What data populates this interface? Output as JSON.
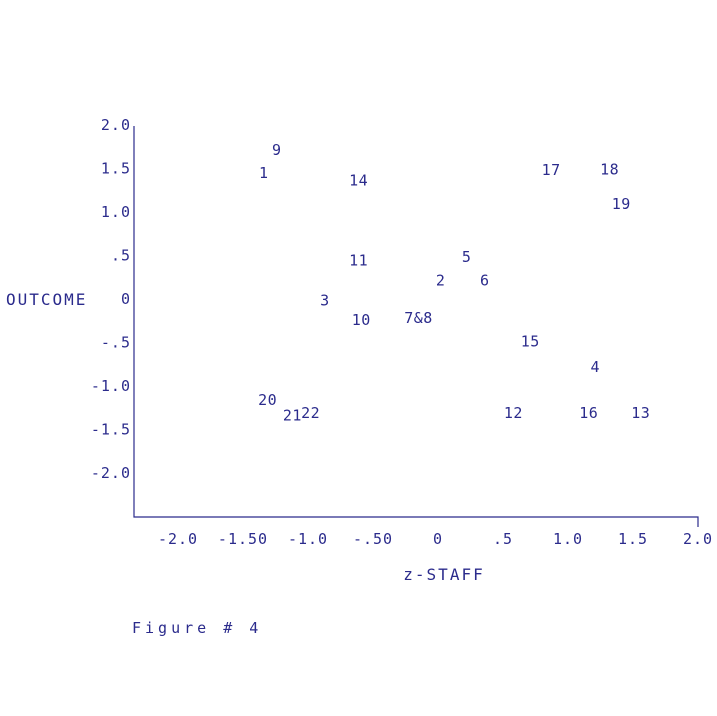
{
  "chart_data": {
    "type": "scatter",
    "title": "",
    "xlabel": "z-STAFF",
    "ylabel": "OUTCOME",
    "caption": "Figure # 4",
    "xlim": [
      -2.0,
      2.0
    ],
    "ylim": [
      -2.5,
      2.0
    ],
    "grid": false,
    "x_ticks": [
      {
        "label": "-2.0",
        "value": -2.0
      },
      {
        "label": "-1.50",
        "value": -1.5
      },
      {
        "label": "-1.0",
        "value": -1.0
      },
      {
        "label": "-.50",
        "value": -0.5
      },
      {
        "label": "0",
        "value": 0
      },
      {
        "label": ".5",
        "value": 0.5
      },
      {
        "label": "1.0",
        "value": 1.0
      },
      {
        "label": "1.5",
        "value": 1.5
      },
      {
        "label": "2.0",
        "value": 2.0
      }
    ],
    "y_ticks": [
      {
        "label": "2.0",
        "value": 2.0
      },
      {
        "label": "1.5",
        "value": 1.5
      },
      {
        "label": "1.0",
        "value": 1.0
      },
      {
        "label": ".5",
        "value": 0.5
      },
      {
        "label": "0",
        "value": 0
      },
      {
        "label": "-.5",
        "value": -0.5
      },
      {
        "label": "-1.0",
        "value": -1.0
      },
      {
        "label": "-1.5",
        "value": -1.5
      },
      {
        "label": "-2.0",
        "value": -2.0
      }
    ],
    "points": [
      {
        "label": "9",
        "x": -1.24,
        "y": 1.71
      },
      {
        "label": "1",
        "x": -1.34,
        "y": 1.45
      },
      {
        "label": "14",
        "x": -0.61,
        "y": 1.36
      },
      {
        "label": "17",
        "x": 0.87,
        "y": 1.48
      },
      {
        "label": "18",
        "x": 1.32,
        "y": 1.49
      },
      {
        "label": "19",
        "x": 1.41,
        "y": 1.09
      },
      {
        "label": "11",
        "x": -0.61,
        "y": 0.44
      },
      {
        "label": "5",
        "x": 0.22,
        "y": 0.48
      },
      {
        "label": "2",
        "x": 0.02,
        "y": 0.21
      },
      {
        "label": "6",
        "x": 0.36,
        "y": 0.21
      },
      {
        "label": "3",
        "x": -0.87,
        "y": -0.02
      },
      {
        "label": "10",
        "x": -0.59,
        "y": -0.24
      },
      {
        "label": "7&8",
        "x": -0.15,
        "y": -0.22
      },
      {
        "label": "15",
        "x": 0.71,
        "y": -0.49
      },
      {
        "label": "4",
        "x": 1.21,
        "y": -0.78
      },
      {
        "label": "20",
        "x": -1.31,
        "y": -1.16
      },
      {
        "label": "21",
        "x": -1.12,
        "y": -1.34
      },
      {
        "label": "22",
        "x": -0.98,
        "y": -1.31
      },
      {
        "label": "12",
        "x": 0.58,
        "y": -1.31
      },
      {
        "label": "16",
        "x": 1.16,
        "y": -1.31
      },
      {
        "label": "13",
        "x": 1.56,
        "y": -1.31
      }
    ]
  }
}
